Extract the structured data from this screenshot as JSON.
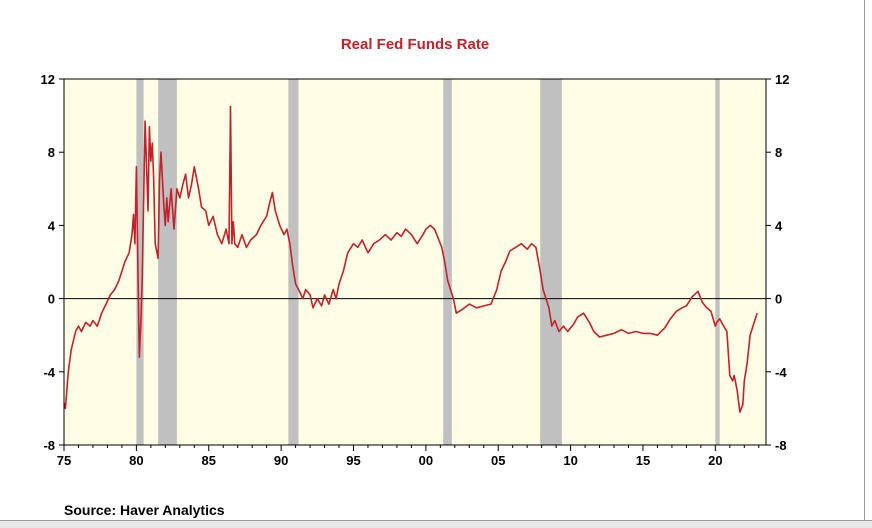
{
  "chart_data": {
    "type": "line",
    "title": "Real Fed Funds Rate",
    "source": "Source:  Haver Analytics",
    "xlabel": "",
    "ylabel": "",
    "xlim": [
      1975,
      2023.5
    ],
    "ylim": [
      -8,
      12
    ],
    "y_ticks": [
      -8,
      -4,
      0,
      4,
      8,
      12
    ],
    "y_tick_labels": [
      "-8",
      "-4",
      "0",
      "4",
      "8",
      "12"
    ],
    "x_ticks": [
      1975,
      1980,
      1985,
      1990,
      1995,
      2000,
      2005,
      2010,
      2015,
      2020
    ],
    "x_tick_labels": [
      "75",
      "80",
      "85",
      "90",
      "95",
      "00",
      "05",
      "10",
      "15",
      "20"
    ],
    "zero_line": true,
    "grid": false,
    "colors": {
      "line": "#c0232b",
      "plot_background": "#fffde6",
      "recession": "#c0c0c0",
      "title": "#c0232b"
    },
    "recessions": [
      [
        1980.0,
        1980.5
      ],
      [
        1981.5,
        1982.8
      ],
      [
        1990.5,
        1991.2
      ],
      [
        2001.2,
        2001.8
      ],
      [
        2007.9,
        2009.4
      ],
      [
        2020.0,
        2020.3
      ]
    ],
    "series": [
      {
        "x": [
          1975.0,
          1975.1,
          1975.3,
          1975.5,
          1975.8,
          1976.0,
          1976.2,
          1976.5,
          1976.8,
          1977.0,
          1977.3,
          1977.6,
          1977.9,
          1978.2,
          1978.5,
          1978.8,
          1979.0,
          1979.2,
          1979.5,
          1979.7,
          1979.8,
          1979.9,
          1980.0,
          1980.1,
          1980.2,
          1980.3,
          1980.4,
          1980.6,
          1980.8,
          1980.9,
          1981.0,
          1981.1,
          1981.2,
          1981.3,
          1981.5,
          1981.6,
          1981.7,
          1981.9,
          1982.0,
          1982.1,
          1982.2,
          1982.4,
          1982.6,
          1982.8,
          1983.0,
          1983.2,
          1983.4,
          1983.6,
          1983.8,
          1984.0,
          1984.3,
          1984.5,
          1984.8,
          1985.0,
          1985.3,
          1985.6,
          1985.9,
          1986.2,
          1986.4,
          1986.5,
          1986.6,
          1986.7,
          1986.8,
          1987.0,
          1987.3,
          1987.6,
          1987.9,
          1988.3,
          1988.6,
          1989.0,
          1989.2,
          1989.4,
          1989.6,
          1989.9,
          1990.2,
          1990.4,
          1990.6,
          1990.8,
          1991.0,
          1991.2,
          1991.5,
          1991.7,
          1992.0,
          1992.2,
          1992.5,
          1992.8,
          1993.0,
          1993.3,
          1993.6,
          1993.8,
          1994.0,
          1994.3,
          1994.6,
          1995.0,
          1995.3,
          1995.6,
          1996.0,
          1996.4,
          1996.8,
          1997.2,
          1997.6,
          1998.0,
          1998.3,
          1998.6,
          1999.0,
          1999.4,
          1999.8,
          2000.0,
          2000.3,
          2000.6,
          2000.9,
          2001.1,
          2001.3,
          2001.5,
          2001.7,
          2001.9,
          2002.1,
          2002.5,
          2003.0,
          2003.5,
          2004.0,
          2004.5,
          2004.9,
          2005.2,
          2005.5,
          2005.8,
          2006.2,
          2006.6,
          2007.0,
          2007.3,
          2007.6,
          2007.9,
          2008.1,
          2008.3,
          2008.5,
          2008.7,
          2008.9,
          2009.2,
          2009.5,
          2009.8,
          2010.2,
          2010.5,
          2010.9,
          2011.3,
          2011.6,
          2012.0,
          2012.5,
          2013.0,
          2013.5,
          2014.0,
          2014.5,
          2015.0,
          2015.5,
          2016.0,
          2016.5,
          2016.9,
          2017.3,
          2017.7,
          2018.0,
          2018.4,
          2018.8,
          2019.1,
          2019.4,
          2019.7,
          2020.0,
          2020.1,
          2020.3,
          2020.5,
          2020.8,
          2021.0,
          2021.2,
          2021.3,
          2021.5,
          2021.7,
          2021.9,
          2022.0,
          2022.2,
          2022.4,
          2022.6,
          2022.8,
          2022.9
        ],
        "y": [
          -5.7,
          -6.0,
          -4.0,
          -2.8,
          -1.8,
          -1.5,
          -1.8,
          -1.3,
          -1.5,
          -1.2,
          -1.5,
          -0.8,
          -0.3,
          0.2,
          0.5,
          1.0,
          1.5,
          2.0,
          2.5,
          3.5,
          4.6,
          3.0,
          7.2,
          2.0,
          -3.2,
          -1.5,
          1.0,
          9.7,
          4.8,
          9.4,
          7.5,
          8.5,
          6.5,
          3.0,
          2.2,
          6.5,
          8.0,
          5.0,
          4.0,
          5.5,
          4.2,
          6.0,
          3.8,
          6.0,
          5.5,
          6.2,
          6.8,
          5.5,
          6.2,
          7.2,
          6.0,
          5.0,
          4.8,
          4.0,
          4.5,
          3.5,
          3.0,
          3.8,
          3.0,
          10.5,
          3.0,
          4.2,
          3.0,
          2.8,
          3.5,
          2.8,
          3.2,
          3.5,
          4.0,
          4.5,
          5.2,
          5.8,
          4.8,
          4.0,
          3.5,
          3.8,
          3.0,
          1.8,
          0.8,
          0.5,
          0.0,
          0.5,
          0.2,
          -0.5,
          0.0,
          -0.4,
          0.2,
          -0.3,
          0.5,
          0.0,
          0.8,
          1.5,
          2.5,
          3.0,
          2.8,
          3.2,
          2.5,
          3.0,
          3.2,
          3.5,
          3.2,
          3.6,
          3.4,
          3.8,
          3.5,
          3.0,
          3.5,
          3.8,
          4.0,
          3.8,
          3.2,
          2.8,
          2.0,
          1.0,
          0.5,
          0.0,
          -0.8,
          -0.6,
          -0.3,
          -0.5,
          -0.4,
          -0.3,
          0.5,
          1.5,
          2.0,
          2.6,
          2.8,
          3.0,
          2.7,
          3.0,
          2.8,
          1.5,
          0.5,
          0.0,
          -0.5,
          -1.5,
          -1.2,
          -1.8,
          -1.5,
          -1.8,
          -1.4,
          -1.0,
          -0.8,
          -1.3,
          -1.8,
          -2.1,
          -2.0,
          -1.9,
          -1.7,
          -1.9,
          -1.8,
          -1.9,
          -1.9,
          -2.0,
          -1.6,
          -1.1,
          -0.7,
          -0.5,
          -0.4,
          0.1,
          0.4,
          -0.2,
          -0.5,
          -0.7,
          -1.5,
          -1.3,
          -1.1,
          -1.4,
          -1.8,
          -4.2,
          -4.5,
          -4.2,
          -5.0,
          -6.2,
          -5.8,
          -4.5,
          -3.5,
          -2.0,
          -1.5,
          -1.0,
          -0.8
        ]
      }
    ]
  }
}
